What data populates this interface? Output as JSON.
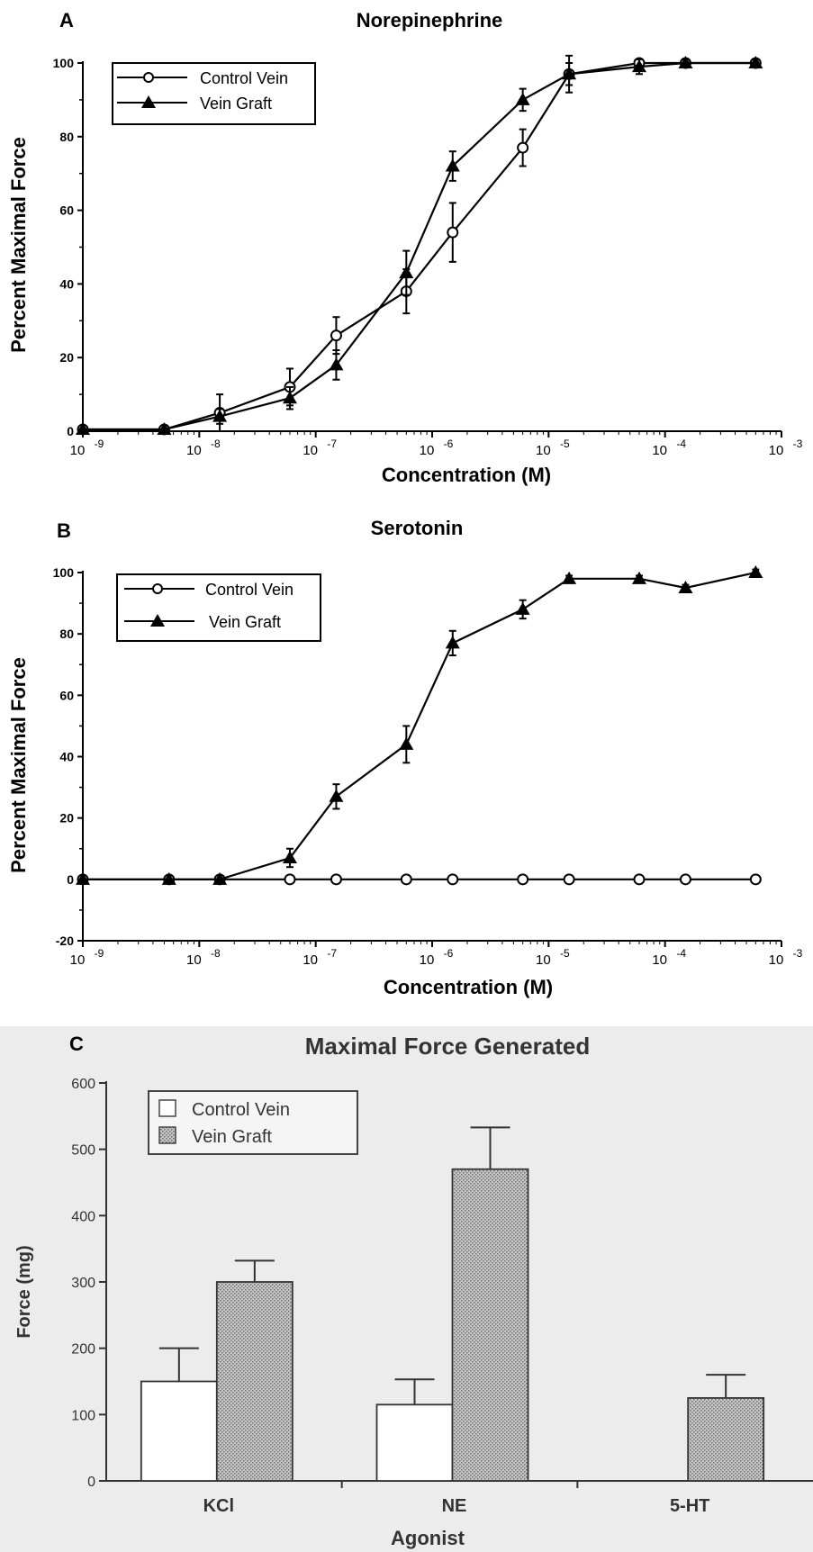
{
  "chart_data": [
    {
      "panel": "A",
      "type": "line",
      "title": "Norepinephrine",
      "xlabel": "Concentration (M)",
      "ylabel": "Percent Maximal Force",
      "xscale": "log",
      "xlim": [
        1e-09,
        0.001
      ],
      "ylim": [
        0,
        100
      ],
      "yticks": [
        0,
        20,
        40,
        60,
        80,
        100
      ],
      "xtick_labels": [
        {
          "base": "10",
          "exp": "-9"
        },
        {
          "base": "10",
          "exp": "-8"
        },
        {
          "base": "10",
          "exp": "-7"
        },
        {
          "base": "10",
          "exp": "-6"
        },
        {
          "base": "10",
          "exp": "-5"
        },
        {
          "base": "10",
          "exp": "-4"
        },
        {
          "base": "10",
          "exp": "-3"
        }
      ],
      "legend": {
        "position": "top-left",
        "entries": [
          "Control Vein",
          "Vein Graft"
        ]
      },
      "series": [
        {
          "name": "Control Vein",
          "marker": "open-circle",
          "x": [
            1e-09,
            5e-09,
            1.5e-08,
            6e-08,
            1.5e-07,
            6e-07,
            1.5e-06,
            6e-06,
            1.5e-05,
            6e-05,
            0.00015,
            0.0006
          ],
          "y": [
            0.5,
            0.5,
            5,
            12,
            26,
            38,
            54,
            77,
            97,
            100,
            100,
            100
          ],
          "err": [
            0,
            1,
            5,
            5,
            5,
            6,
            8,
            5,
            3,
            1,
            1,
            1
          ]
        },
        {
          "name": "Vein Graft",
          "marker": "filled-triangle",
          "x": [
            1e-09,
            5e-09,
            1.5e-08,
            6e-08,
            1.5e-07,
            6e-07,
            1.5e-06,
            6e-06,
            1.5e-05,
            6e-05,
            0.00015,
            0.0006
          ],
          "y": [
            0.5,
            0.5,
            4,
            9,
            18,
            43,
            72,
            90,
            97,
            99,
            100,
            100
          ],
          "err": [
            0,
            0,
            2,
            3,
            4,
            6,
            4,
            3,
            5,
            2,
            1,
            1
          ]
        }
      ]
    },
    {
      "panel": "B",
      "type": "line",
      "title": "Serotonin",
      "xlabel": "Concentration (M)",
      "ylabel": "Percent Maximal Force",
      "xscale": "log",
      "xlim": [
        1e-09,
        0.001
      ],
      "ylim": [
        -20,
        100
      ],
      "yticks": [
        -20,
        0,
        20,
        40,
        60,
        80,
        100
      ],
      "xtick_labels": [
        {
          "base": "10",
          "exp": "-9"
        },
        {
          "base": "10",
          "exp": "-8"
        },
        {
          "base": "10",
          "exp": "-7"
        },
        {
          "base": "10",
          "exp": "-6"
        },
        {
          "base": "10",
          "exp": "-5"
        },
        {
          "base": "10",
          "exp": "-4"
        },
        {
          "base": "10",
          "exp": "-3"
        }
      ],
      "legend": {
        "position": "top-left",
        "entries": [
          "Control Vein",
          "Vein Graft"
        ]
      },
      "series": [
        {
          "name": "Control Vein",
          "marker": "open-circle",
          "x": [
            1e-09,
            5.5e-09,
            1.5e-08,
            6e-08,
            1.5e-07,
            6e-07,
            1.5e-06,
            6e-06,
            1.5e-05,
            6e-05,
            0.00015,
            0.0006
          ],
          "y": [
            0,
            0,
            0,
            0,
            0,
            0,
            0,
            0,
            0,
            0,
            0,
            0
          ],
          "err": [
            0,
            0,
            0,
            0,
            0,
            0,
            0,
            0,
            0,
            0,
            0,
            0
          ]
        },
        {
          "name": "Vein Graft",
          "marker": "filled-triangle",
          "x": [
            1e-09,
            5.5e-09,
            1.5e-08,
            6e-08,
            1.5e-07,
            6e-07,
            1.5e-06,
            6e-06,
            1.5e-05,
            6e-05,
            0.00015,
            0.0006
          ],
          "y": [
            0,
            0,
            0,
            7,
            27,
            44,
            77,
            88,
            98,
            98,
            95,
            100
          ],
          "err": [
            0,
            0,
            0,
            3,
            4,
            6,
            4,
            3,
            1,
            1,
            1,
            1
          ]
        }
      ]
    },
    {
      "panel": "C",
      "type": "bar",
      "title": "Maximal Force Generated",
      "xlabel": "Agonist",
      "ylabel": "Force (mg)",
      "ylim": [
        0,
        600
      ],
      "yticks": [
        0,
        100,
        200,
        300,
        400,
        500,
        600
      ],
      "categories": [
        "KCl",
        "NE",
        "5-HT"
      ],
      "legend": {
        "position": "top-left",
        "entries": [
          "Control Vein",
          "Vein Graft"
        ]
      },
      "series": [
        {
          "name": "Control Vein",
          "fill": "white",
          "values": [
            150,
            115,
            0
          ],
          "err": [
            50,
            38,
            0
          ]
        },
        {
          "name": "Vein Graft",
          "fill": "stippled",
          "values": [
            300,
            470,
            125
          ],
          "err": [
            32,
            63,
            35
          ]
        }
      ]
    }
  ],
  "colors": {
    "ink": "#000000",
    "stipple_bg": "#c8c8c8",
    "stipple_dot": "#6a6a6a",
    "paper": "#ffffff"
  }
}
